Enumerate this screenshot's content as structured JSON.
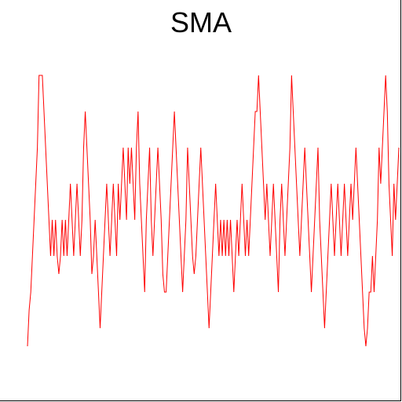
{
  "chart_data": {
    "type": "line",
    "title": "SMA",
    "xlabel": "",
    "ylabel": "",
    "grid": false,
    "ylim": [
      0,
      8.5
    ],
    "series": [
      {
        "color": "#ff0000",
        "values": [
          0.5,
          1.5,
          2.0,
          3.0,
          4.0,
          5.0,
          6.0,
          8.0,
          8.0,
          8.0,
          7.0,
          6.0,
          5.0,
          4.0,
          3.0,
          4.0,
          3.0,
          4.0,
          3.0,
          2.5,
          3.0,
          4.0,
          3.0,
          4.0,
          3.0,
          4.0,
          5.0,
          4.0,
          3.0,
          4.0,
          5.0,
          4.0,
          3.0,
          4.0,
          6.0,
          7.0,
          6.0,
          5.0,
          4.0,
          2.5,
          3.0,
          4.0,
          3.0,
          2.0,
          1.0,
          2.0,
          3.0,
          4.0,
          5.0,
          4.0,
          3.0,
          4.0,
          5.0,
          4.0,
          3.0,
          5.0,
          4.0,
          5.0,
          6.0,
          5.0,
          4.0,
          6.0,
          5.0,
          6.0,
          5.0,
          4.0,
          6.0,
          7.0,
          5.0,
          4.0,
          3.0,
          2.0,
          4.0,
          5.0,
          6.0,
          4.0,
          3.0,
          4.0,
          5.0,
          6.0,
          5.0,
          4.0,
          2.5,
          2.0,
          2.0,
          3.0,
          4.0,
          5.0,
          6.0,
          7.0,
          6.0,
          5.0,
          4.0,
          3.0,
          2.0,
          3.0,
          4.0,
          6.0,
          5.0,
          4.0,
          3.0,
          2.5,
          3.0,
          4.0,
          5.0,
          6.0,
          5.0,
          4.0,
          3.0,
          2.0,
          1.0,
          2.0,
          3.0,
          4.0,
          5.0,
          4.0,
          3.0,
          4.0,
          3.0,
          4.0,
          3.0,
          4.0,
          3.0,
          4.0,
          3.0,
          2.0,
          3.0,
          4.0,
          3.0,
          4.0,
          5.0,
          4.0,
          3.0,
          4.0,
          3.0,
          4.0,
          5.0,
          6.0,
          7.0,
          7.0,
          8.0,
          7.0,
          6.0,
          5.0,
          4.0,
          5.0,
          4.0,
          3.0,
          4.0,
          5.0,
          4.0,
          3.0,
          2.0,
          4.0,
          5.0,
          4.0,
          3.0,
          4.0,
          5.0,
          6.0,
          8.0,
          7.0,
          6.0,
          5.0,
          4.0,
          3.0,
          4.0,
          5.0,
          6.0,
          5.0,
          4.0,
          3.0,
          2.0,
          3.0,
          4.0,
          5.0,
          6.0,
          4.0,
          3.0,
          2.0,
          1.0,
          2.0,
          3.0,
          4.0,
          5.0,
          4.0,
          3.0,
          4.0,
          5.0,
          4.0,
          3.0,
          4.0,
          5.0,
          4.0,
          3.0,
          4.0,
          5.0,
          4.0,
          5.0,
          6.0,
          5.0,
          4.0,
          3.0,
          2.0,
          1.0,
          0.5,
          1.0,
          2.0,
          2.0,
          3.0,
          2.0,
          3.0,
          4.0,
          6.0,
          5.0,
          6.0,
          7.0,
          8.0,
          7.0,
          5.0,
          4.0,
          3.0,
          5.0,
          4.0,
          5.0,
          6.0
        ]
      }
    ]
  }
}
